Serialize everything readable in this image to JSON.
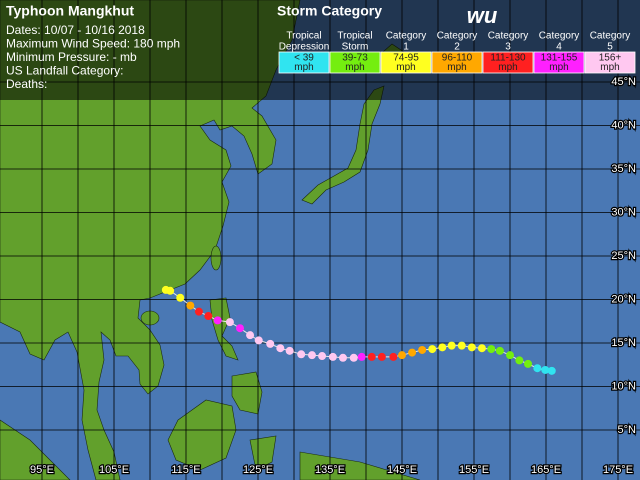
{
  "info": {
    "title": "Typhoon Mangkhut",
    "lines": [
      "Dates: 10/07 - 10/16 2018",
      "Maximum Wind Speed: 180 mph",
      "Minimum Pressure: - mb",
      "US Landfall Category:",
      "Deaths:"
    ]
  },
  "legend": {
    "title": "Storm Category",
    "logo": "wu",
    "items": [
      {
        "name": [
          "Tropical",
          "Depression"
        ],
        "range": [
          "< 39",
          "mph"
        ],
        "color": "#30e4f0"
      },
      {
        "name": [
          "Tropical",
          "Storm"
        ],
        "range": [
          "39-73",
          "mph"
        ],
        "color": "#74ee10"
      },
      {
        "name": [
          "Category",
          "1"
        ],
        "range": [
          "74-95",
          "mph"
        ],
        "color": "#ffff20"
      },
      {
        "name": [
          "Category",
          "2"
        ],
        "range": [
          "96-110",
          "mph"
        ],
        "color": "#ffa800"
      },
      {
        "name": [
          "Category",
          "3"
        ],
        "range": [
          "111-130",
          "mph"
        ],
        "color": "#ff2020"
      },
      {
        "name": [
          "Category",
          "4"
        ],
        "range": [
          "131-155",
          "mph"
        ],
        "color": "#ff20ff"
      },
      {
        "name": [
          "Category",
          "5"
        ],
        "range": [
          "156+",
          "mph"
        ],
        "color": "#ffc8f0"
      }
    ]
  },
  "map": {
    "lat_ticks": [
      {
        "value": 5,
        "label": "5°N"
      },
      {
        "value": 10,
        "label": "10°N"
      },
      {
        "value": 15,
        "label": "15°N"
      },
      {
        "value": 20,
        "label": "20°N"
      },
      {
        "value": 25,
        "label": "25°N"
      },
      {
        "value": 30,
        "label": "30°N"
      },
      {
        "value": 35,
        "label": "35°N"
      },
      {
        "value": 40,
        "label": "40°N"
      },
      {
        "value": 45,
        "label": "45°N"
      }
    ],
    "lon_ticks": [
      {
        "value": 95,
        "label": "95°E"
      },
      {
        "value": 105,
        "label": "105°E"
      },
      {
        "value": 115,
        "label": "115°E"
      },
      {
        "value": 125,
        "label": "125°E"
      },
      {
        "value": 135,
        "label": "135°E"
      },
      {
        "value": 145,
        "label": "145°E"
      },
      {
        "value": 155,
        "label": "155°E"
      },
      {
        "value": 165,
        "label": "165°E"
      },
      {
        "value": 175,
        "label": "175°E"
      }
    ],
    "track": [
      {
        "lon": 165.8,
        "lat": 11.8,
        "color": "#30e4f0"
      },
      {
        "lon": 164.9,
        "lat": 11.9,
        "color": "#30e4f0"
      },
      {
        "lon": 163.8,
        "lat": 12.1,
        "color": "#30e4f0"
      },
      {
        "lon": 162.5,
        "lat": 12.6,
        "color": "#74ee10"
      },
      {
        "lon": 161.3,
        "lat": 13.0,
        "color": "#74ee10"
      },
      {
        "lon": 160.0,
        "lat": 13.6,
        "color": "#74ee10"
      },
      {
        "lon": 158.6,
        "lat": 14.1,
        "color": "#74ee10"
      },
      {
        "lon": 157.4,
        "lat": 14.3,
        "color": "#74ee10"
      },
      {
        "lon": 156.1,
        "lat": 14.4,
        "color": "#ffff20"
      },
      {
        "lon": 154.7,
        "lat": 14.5,
        "color": "#ffff20"
      },
      {
        "lon": 153.3,
        "lat": 14.7,
        "color": "#ffff20"
      },
      {
        "lon": 151.9,
        "lat": 14.7,
        "color": "#ffff20"
      },
      {
        "lon": 150.6,
        "lat": 14.5,
        "color": "#ffff20"
      },
      {
        "lon": 149.2,
        "lat": 14.3,
        "color": "#ffff20"
      },
      {
        "lon": 147.8,
        "lat": 14.2,
        "color": "#ffa800"
      },
      {
        "lon": 146.4,
        "lat": 13.9,
        "color": "#ffa800"
      },
      {
        "lon": 145.0,
        "lat": 13.6,
        "color": "#ffa800"
      },
      {
        "lon": 143.8,
        "lat": 13.4,
        "color": "#ff2020"
      },
      {
        "lon": 142.2,
        "lat": 13.4,
        "color": "#ff2020"
      },
      {
        "lon": 140.8,
        "lat": 13.4,
        "color": "#ff2020"
      },
      {
        "lon": 139.4,
        "lat": 13.4,
        "color": "#ff20ff"
      },
      {
        "lon": 138.3,
        "lat": 13.3,
        "color": "#ffc8f0"
      },
      {
        "lon": 136.8,
        "lat": 13.3,
        "color": "#ffc8f0"
      },
      {
        "lon": 135.4,
        "lat": 13.4,
        "color": "#ffc8f0"
      },
      {
        "lon": 133.9,
        "lat": 13.5,
        "color": "#ffc8f0"
      },
      {
        "lon": 132.5,
        "lat": 13.6,
        "color": "#ffc8f0"
      },
      {
        "lon": 131.0,
        "lat": 13.7,
        "color": "#ffc8f0"
      },
      {
        "lon": 129.4,
        "lat": 14.1,
        "color": "#ffc8f0"
      },
      {
        "lon": 128.1,
        "lat": 14.4,
        "color": "#ffc8f0"
      },
      {
        "lon": 126.7,
        "lat": 14.9,
        "color": "#ffc8f0"
      },
      {
        "lon": 125.1,
        "lat": 15.3,
        "color": "#ffc8f0"
      },
      {
        "lon": 123.9,
        "lat": 15.9,
        "color": "#ffc8f0"
      },
      {
        "lon": 122.5,
        "lat": 16.7,
        "color": "#ff20ff"
      },
      {
        "lon": 121.1,
        "lat": 17.4,
        "color": "#ffc8f0"
      },
      {
        "lon": 119.4,
        "lat": 17.6,
        "color": "#ff20ff"
      },
      {
        "lon": 118.1,
        "lat": 18.1,
        "color": "#ff2020"
      },
      {
        "lon": 116.8,
        "lat": 18.6,
        "color": "#ff2020"
      },
      {
        "lon": 115.6,
        "lat": 19.3,
        "color": "#ffa800"
      },
      {
        "lon": 114.2,
        "lat": 20.2,
        "color": "#ffff20"
      },
      {
        "lon": 112.8,
        "lat": 21.0,
        "color": "#ffff20"
      },
      {
        "lon": 112.2,
        "lat": 21.1,
        "color": "#ffff20"
      }
    ]
  }
}
